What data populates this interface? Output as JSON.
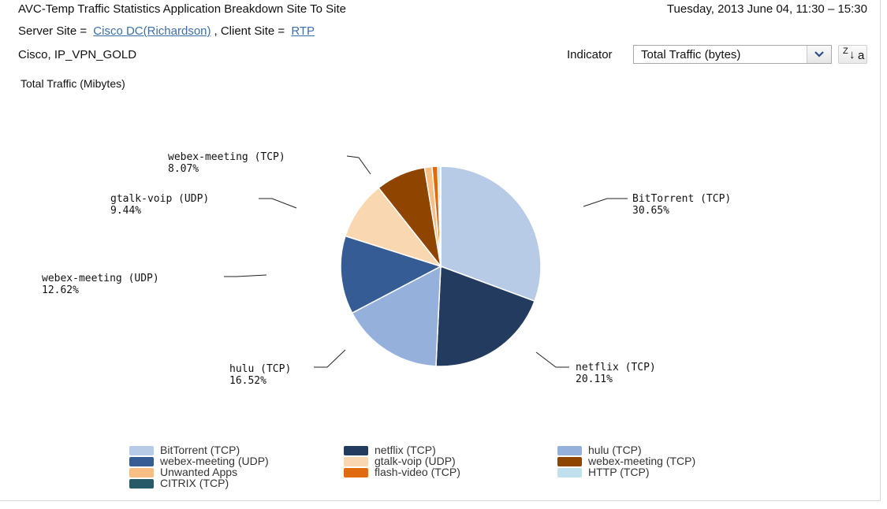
{
  "header": {
    "title": "AVC-Temp Traffic Statistics Application Breakdown Site To Site",
    "datetime": "Tuesday, 2013 June 04, 11:30 – 15:30",
    "server_site_label": "Server Site =",
    "server_site_value": "Cisco DC(Richardson)",
    "client_site_label": ", Client Site =",
    "client_site_value": "RTP",
    "qos": "Cisco, IP_VPN_GOLD"
  },
  "controls": {
    "indicator_label": "Indicator",
    "indicator_value": "Total Traffic (bytes)",
    "sort_icon": "sort-z-to-a-icon"
  },
  "chart_data": {
    "type": "pie",
    "title": "Total Traffic (Mibytes)",
    "slices": [
      {
        "name": "BitTorrent (TCP)",
        "percent": 30.65,
        "label": "30.65%",
        "color": "#b8cbe6",
        "labeled": true
      },
      {
        "name": "netflix (TCP)",
        "percent": 20.11,
        "label": "20.11%",
        "color": "#243b60",
        "labeled": true
      },
      {
        "name": "hulu (TCP)",
        "percent": 16.52,
        "label": "16.52%",
        "color": "#95b0da",
        "labeled": true
      },
      {
        "name": "webex-meeting (UDP)",
        "percent": 12.62,
        "label": "12.62%",
        "color": "#355c95",
        "labeled": true
      },
      {
        "name": "gtalk-voip (UDP)",
        "percent": 9.44,
        "label": "9.44%",
        "color": "#f9d8b1",
        "labeled": true
      },
      {
        "name": "webex-meeting (TCP)",
        "percent": 8.07,
        "label": "8.07%",
        "color": "#8f4500",
        "labeled": true
      },
      {
        "name": "Unwanted Apps",
        "percent": 1.2,
        "label": "",
        "color": "#f7be85",
        "labeled": false
      },
      {
        "name": "flash-video (TCP)",
        "percent": 0.9,
        "label": "",
        "color": "#e06a0d",
        "labeled": false
      },
      {
        "name": "HTTP (TCP)",
        "percent": 0.4,
        "label": "",
        "color": "#bfe0ec",
        "labeled": false
      },
      {
        "name": "CITRIX (TCP)",
        "percent": 0.09,
        "label": "",
        "color": "#255a66",
        "labeled": false
      }
    ],
    "legend": [
      "BitTorrent (TCP)",
      "netflix (TCP)",
      "hulu (TCP)",
      "webex-meeting (UDP)",
      "gtalk-voip (UDP)",
      "webex-meeting (TCP)",
      "Unwanted Apps",
      "flash-video (TCP)",
      "HTTP (TCP)",
      "CITRIX (TCP)"
    ]
  }
}
